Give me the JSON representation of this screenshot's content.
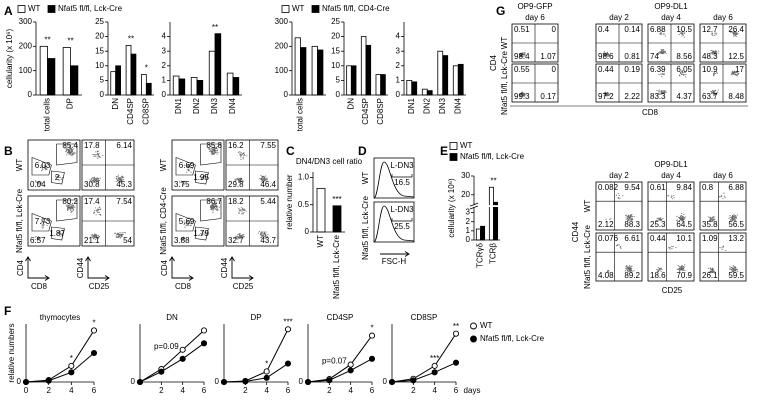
{
  "panel_labels": [
    "A",
    "B",
    "C",
    "D",
    "E",
    "F",
    "G"
  ],
  "chart_data": [
    {
      "type": "bar",
      "ylabel": "cellularity (x 10⁶)",
      "categories": [
        "total cells",
        "DP"
      ],
      "series": [
        {
          "name": "WT",
          "color": "#ffffff",
          "values": [
            200,
            195
          ]
        },
        {
          "name": "Nfat5 fl/fl, Lck-Cre",
          "color": "#000000",
          "values": [
            150,
            120
          ]
        }
      ],
      "ylim": [
        0,
        300
      ],
      "yticks": [
        0,
        100,
        200,
        300
      ],
      "annotations": [
        {
          "text": "**",
          "x": "total cells"
        },
        {
          "text": "**",
          "x": "DP"
        }
      ]
    },
    {
      "type": "bar",
      "categories": [
        "DN",
        "CD4SP",
        "CD8SP"
      ],
      "series": [
        {
          "color": "#ffffff",
          "values": [
            8,
            17,
            7
          ]
        },
        {
          "color": "#000000",
          "values": [
            10,
            14,
            4
          ]
        }
      ],
      "ylim": [
        0,
        25
      ],
      "yticks": [
        0,
        5,
        10,
        15,
        20,
        25
      ],
      "annotations": [
        {
          "text": "**",
          "x": "CD4SP"
        },
        {
          "text": "*",
          "x": "CD8SP"
        }
      ]
    },
    {
      "type": "bar",
      "categories": [
        "DN1",
        "DN2",
        "DN3",
        "DN4"
      ],
      "series": [
        {
          "color": "#ffffff",
          "values": [
            1.3,
            1.2,
            3,
            1.5
          ]
        },
        {
          "color": "#000000",
          "values": [
            1.1,
            1,
            4.2,
            1.2
          ]
        }
      ],
      "ylim": [
        0,
        5
      ],
      "yticks": [
        0,
        1,
        2,
        3,
        4
      ],
      "annotations": [
        {
          "text": "**",
          "x": "DN3"
        }
      ]
    },
    {
      "type": "bar",
      "categories": [
        "total cells",
        null
      ],
      "series": [
        {
          "name": "WT",
          "color": "#ffffff",
          "values": [
            235,
            200
          ]
        },
        {
          "name": "Nfat5 fl/fl, CD4-Cre",
          "color": "#000000",
          "values": [
            195,
            185
          ]
        }
      ],
      "ylim": [
        0,
        300
      ],
      "yticks": [
        0,
        100,
        200,
        300
      ]
    },
    {
      "type": "bar",
      "categories": [
        "DN",
        "CD4SP",
        "CD8SP"
      ],
      "series": [
        {
          "color": "#ffffff",
          "values": [
            10,
            20,
            7
          ]
        },
        {
          "color": "#000000",
          "values": [
            10,
            17,
            7
          ]
        }
      ],
      "ylim": [
        0,
        25
      ],
      "yticks": [
        0,
        5,
        10,
        15,
        20,
        25
      ]
    },
    {
      "type": "bar",
      "categories": [
        "DN1",
        "DN2",
        "DN3",
        "DN4"
      ],
      "series": [
        {
          "color": "#ffffff",
          "values": [
            1,
            0.4,
            3,
            2
          ]
        },
        {
          "color": "#000000",
          "values": [
            0.9,
            0.3,
            2.7,
            2.1
          ]
        }
      ],
      "ylim": [
        0,
        5
      ],
      "yticks": [
        0,
        1,
        2,
        3,
        4
      ]
    },
    {
      "type": "bar",
      "title": "DN4/DN3 cell ratio",
      "ylabel": "relative number",
      "categories": [
        "WT",
        "Nfat5 fl/fl, Lck-Cre"
      ],
      "series": [
        {
          "colors": [
            "#ffffff",
            "#000000"
          ],
          "values": [
            0.8,
            0.48
          ]
        }
      ],
      "ylim": [
        0,
        1.1
      ],
      "yticks": [
        0,
        0.5,
        {
          "value": 1,
          "label": "1.0"
        }
      ],
      "annotations": [
        {
          "text": "***",
          "x": "Nfat5 fl/fl, Lck-Cre"
        }
      ]
    },
    {
      "type": "bar",
      "ylabel": "cellularity (x 10⁶)",
      "categories": [
        "TCRγδ",
        "TCRβ"
      ],
      "series": [
        {
          "name": "WT",
          "color": "#ffffff",
          "values": [
            1.2,
            24
          ]
        },
        {
          "name": "Nfat5 fl/fl, Lck-Cre",
          "color": "#000000",
          "values": [
            1.5,
            16
          ]
        }
      ],
      "ylim": [
        0,
        30
      ],
      "ybreak": [
        3.5,
        15
      ],
      "yticks": [
        0,
        1,
        2,
        3,
        20,
        30
      ],
      "annotations": [
        {
          "text": "**",
          "x": "TCRβ"
        }
      ]
    },
    {
      "type": "line",
      "title": "thymocytes",
      "ylabel": "relative numbers",
      "x": [
        0,
        2,
        4,
        6
      ],
      "xlim": [
        0,
        6
      ],
      "xticks": [
        0,
        2,
        4,
        6
      ],
      "ylim": [
        0,
        90
      ],
      "yticks": [
        0
      ],
      "series": [
        {
          "name": "WT",
          "color": "#ffffff",
          "values": [
            0,
            3,
            25,
            80
          ]
        },
        {
          "name": "Nfat5 fl/fl, Lck-Cre",
          "color": "#000000",
          "values": [
            0,
            2,
            15,
            45
          ]
        }
      ],
      "annotations": [
        {
          "text": "*",
          "x": 4
        },
        {
          "text": "*",
          "x": 6
        }
      ]
    },
    {
      "type": "line",
      "title": "DN",
      "x": [
        0,
        2,
        4,
        6
      ],
      "xlim": [
        0,
        6
      ],
      "xticks": [
        2,
        4,
        6
      ],
      "ylim": [
        0,
        45
      ],
      "yticks": [
        0
      ],
      "series": [
        {
          "color": "#ffffff",
          "values": [
            0,
            10,
            25,
            40
          ]
        },
        {
          "color": "#000000",
          "values": [
            0,
            8,
            18,
            30
          ]
        }
      ],
      "annotations": [
        {
          "text": "p=0.09",
          "x": 4
        }
      ]
    },
    {
      "type": "line",
      "title": "DP",
      "x": [
        0,
        2,
        4,
        6
      ],
      "xlim": [
        0,
        6
      ],
      "xticks": [
        2,
        4,
        6
      ],
      "ylim": [
        0,
        110
      ],
      "yticks": [
        0
      ],
      "series": [
        {
          "color": "#ffffff",
          "values": [
            0,
            2,
            20,
            100
          ]
        },
        {
          "color": "#000000",
          "values": [
            0,
            1,
            8,
            35
          ]
        }
      ],
      "annotations": [
        {
          "text": "*",
          "x": 4
        },
        {
          "text": "***",
          "x": 6
        }
      ]
    },
    {
      "type": "line",
      "title": "CD4SP",
      "x": [
        0,
        2,
        4,
        6
      ],
      "xlim": [
        0,
        6
      ],
      "xticks": [
        2,
        4,
        6
      ],
      "ylim": [
        0,
        10
      ],
      "yticks": [
        0
      ],
      "series": [
        {
          "color": "#ffffff",
          "values": [
            0,
            0.5,
            3,
            8
          ]
        },
        {
          "color": "#000000",
          "values": [
            0,
            0.3,
            2,
            4
          ]
        }
      ],
      "annotations": [
        {
          "text": "p=0.07",
          "x": 4
        },
        {
          "text": "*",
          "x": 6
        }
      ]
    },
    {
      "type": "line",
      "title": "CD8SP",
      "xlabel": "days",
      "x": [
        0,
        2,
        4,
        6
      ],
      "xlim": [
        0,
        6
      ],
      "xticks": [
        2,
        4,
        6
      ],
      "ylim": [
        0,
        18
      ],
      "yticks": [
        0
      ],
      "series": [
        {
          "color": "#ffffff",
          "values": [
            0,
            1,
            5,
            15
          ]
        },
        {
          "color": "#000000",
          "values": [
            0,
            0.5,
            3,
            6
          ]
        }
      ],
      "annotations": [
        {
          "text": "***",
          "x": 4
        },
        {
          "text": "**",
          "x": 6
        }
      ]
    }
  ],
  "flow": {
    "B": {
      "row_labels": [
        "WT",
        "Nfat5 fl/fl, Lck-Cre",
        "WT",
        "Nfat5 fl/fl, CD4-Cre"
      ],
      "axis_labels": [
        "CD4",
        "CD8",
        "CD44",
        "CD25",
        "CD4",
        "CD8",
        "CD44",
        "CD25"
      ],
      "plots": [
        [
          85.4,
          6.03,
          2,
          0.04
        ],
        [
          17.8,
          6.14,
          30.8,
          45.3
        ],
        [
          80.2,
          7.73,
          1.87,
          6.57
        ],
        [
          17.4,
          7.54,
          21.1,
          54
        ],
        [
          85.8,
          6.69,
          1.95,
          3.75
        ],
        [
          16.2,
          7.55,
          29.8,
          46.4
        ],
        [
          86.7,
          5.69,
          1.79,
          3.88
        ],
        [
          18.2,
          5.44,
          32.7,
          43.7
        ]
      ]
    },
    "D": {
      "row_labels": [
        "WT",
        "Nfat5 fl/fl, Lck-Cre"
      ],
      "axis_label": "FSC-H",
      "gates": [
        {
          "label": "L-DN3",
          "value": 16.5
        },
        {
          "label": "L-DN3",
          "value": 25.5
        }
      ]
    },
    "G": {
      "top_titles": [
        "OP9-GFP",
        "OP9-DL1"
      ],
      "top_days": [
        "day 6",
        "day 2",
        "day 4",
        "day 6"
      ],
      "top_rows": [
        "WT",
        "Nfat5 fl/fl, Lck-Cre"
      ],
      "top_axes": [
        "CD4",
        "CD8"
      ],
      "top_plots": [
        [
          0.51,
          0,
          98.4,
          1.07
        ],
        [
          0.4,
          0.14,
          98.6,
          0.81
        ],
        [
          6.88,
          10.5,
          74,
          8.56
        ],
        [
          12.7,
          26.4,
          48.3,
          12.5
        ],
        [
          0.55,
          0,
          99.3,
          0.17
        ],
        [
          0.44,
          0.19,
          97.2,
          2.22
        ],
        [
          6.39,
          6.05,
          83.3,
          4.37
        ],
        [
          10.9,
          17,
          63.7,
          8.48
        ]
      ],
      "bottom_title": "OP9-DL1",
      "bottom_days": [
        "day 2",
        "day 4",
        "day 6"
      ],
      "bottom_rows": [
        "WT",
        "Nfat5 fl/fl, Lck-Cre"
      ],
      "bottom_axes": [
        "CD44",
        "CD25"
      ],
      "bottom_plots": [
        [
          0.082,
          9.54,
          2.12,
          88.3
        ],
        [
          0.61,
          9.84,
          25.3,
          64.5
        ],
        [
          0.8,
          6.88,
          35.8,
          56.5
        ],
        [
          0.076,
          6.61,
          4.08,
          89.2
        ],
        [
          0.44,
          10.1,
          18.6,
          70.9
        ],
        [
          1.09,
          13.2,
          26.1,
          59.5
        ]
      ]
    }
  }
}
